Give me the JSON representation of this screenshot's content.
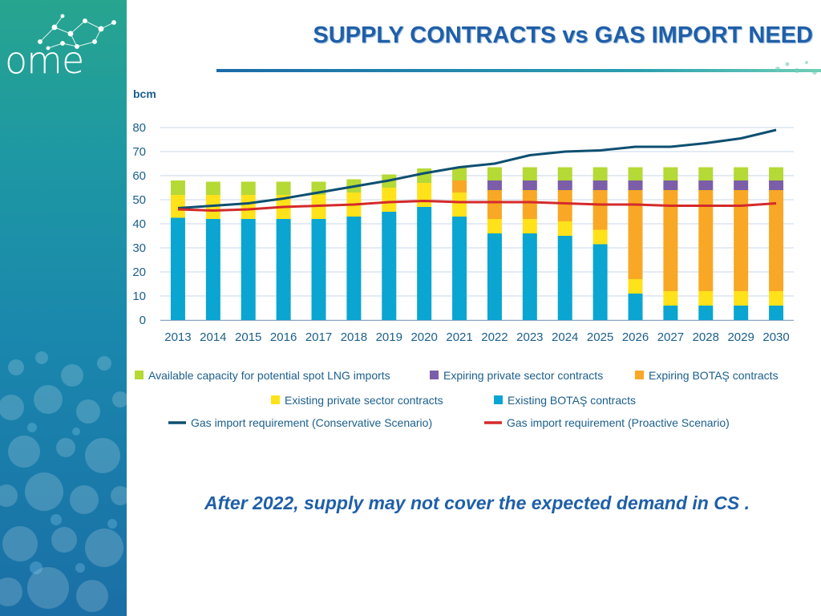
{
  "slide": {
    "logo_text": "ome",
    "title": "SUPPLY CONTRACTS vs GAS IMPORT NEED",
    "caption": "After 2022, supply may not cover the expected demand in CS ."
  },
  "chart_data": {
    "type": "bar",
    "stacked": true,
    "ylabel": "bcm",
    "ylim": [
      0,
      80
    ],
    "yticks": [
      0,
      10,
      20,
      30,
      40,
      50,
      60,
      70,
      80
    ],
    "grid": true,
    "legend_position": "bottom",
    "categories": [
      "2013",
      "2014",
      "2015",
      "2016",
      "2017",
      "2018",
      "2019",
      "2020",
      "2021",
      "2022",
      "2023",
      "2024",
      "2025",
      "2026",
      "2027",
      "2028",
      "2029",
      "2030"
    ],
    "series": [
      {
        "name": "Existing BOTAŞ contracts",
        "kind": "bar",
        "color": "#0aa5d0",
        "values": [
          42.5,
          42,
          42,
          42,
          42,
          43,
          45,
          47,
          43,
          36,
          36,
          35,
          31.5,
          11,
          6,
          6,
          6,
          6
        ]
      },
      {
        "name": "Existing  private sector contracts",
        "kind": "bar",
        "color": "#ffe21a",
        "values": [
          9.5,
          10,
          10,
          10,
          10,
          10,
          10,
          10,
          10,
          6,
          6,
          6,
          6,
          6,
          6,
          6,
          6,
          6
        ]
      },
      {
        "name": "Expiring BOTAŞ  contracts",
        "kind": "bar",
        "color": "#f9a825",
        "values": [
          0,
          0,
          0,
          0,
          0,
          0,
          0,
          0,
          5,
          12,
          12,
          13,
          16.5,
          37,
          42,
          42,
          42,
          42
        ]
      },
      {
        "name": "Expiring private sector contracts",
        "kind": "bar",
        "color": "#7b5ea7",
        "values": [
          0,
          0,
          0,
          0,
          0,
          0,
          0,
          0,
          0,
          4,
          4,
          4,
          4,
          4,
          4,
          4,
          4,
          4
        ]
      },
      {
        "name": "Available capacity for potential spot LNG imports",
        "kind": "bar",
        "color": "#b5d935",
        "values": [
          6,
          5.5,
          5.5,
          5.5,
          5.5,
          5.5,
          5.5,
          6,
          5.5,
          5.5,
          5.5,
          5.5,
          5.5,
          5.5,
          5.5,
          5.5,
          5.5,
          5.5
        ]
      },
      {
        "name": "Gas import requirement (Conservative Scenario)",
        "kind": "line",
        "color": "#0d4f70",
        "values": [
          46.5,
          47.5,
          48.5,
          50.5,
          53,
          55.5,
          58,
          61,
          63.5,
          65,
          68.5,
          70,
          70.5,
          72,
          72,
          73.5,
          75.5,
          79
        ]
      },
      {
        "name": "Gas import requirement (Proactive Scenario)",
        "kind": "line",
        "color": "#d42a2a",
        "values": [
          46,
          45.5,
          46,
          47,
          47.5,
          48,
          49,
          49.5,
          49,
          49,
          49,
          48.5,
          48,
          48,
          47.5,
          47.5,
          47.5,
          48.5
        ]
      }
    ],
    "legend_rows": [
      [
        "Available capacity for potential spot LNG imports",
        "Expiring private sector contracts",
        "Expiring BOTAŞ  contracts"
      ],
      [
        "Existing  private sector contracts",
        "Existing BOTAŞ contracts"
      ],
      [
        "Gas import requirement (Conservative Scenario)",
        "Gas import requirement (Proactive Scenario)"
      ]
    ]
  }
}
